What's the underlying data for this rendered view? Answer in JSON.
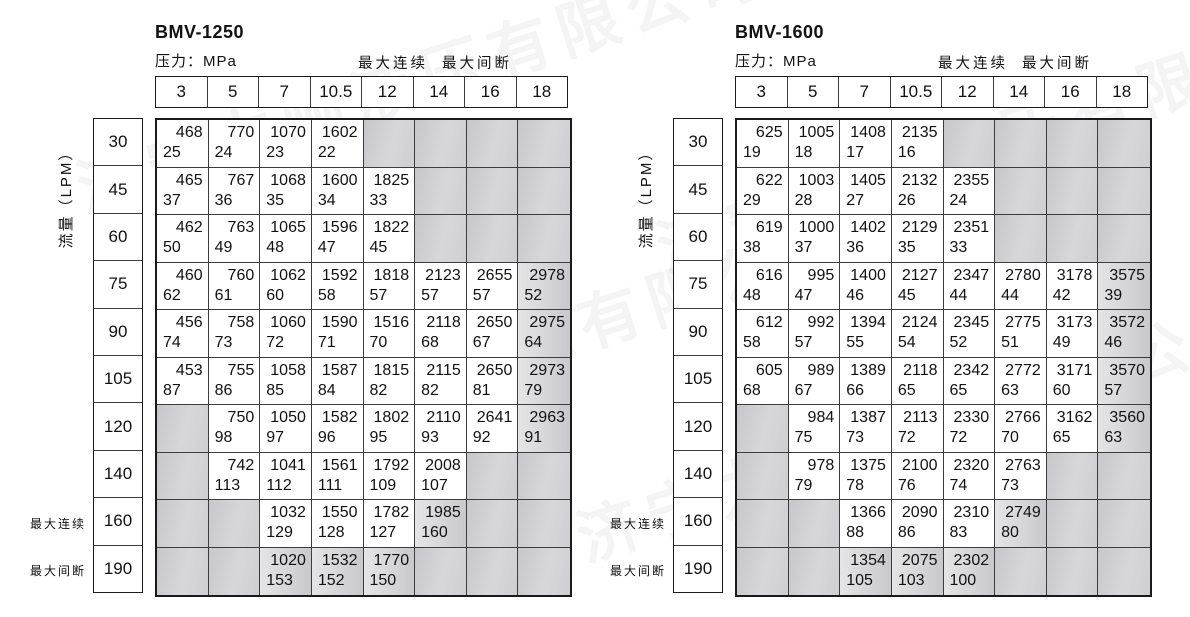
{
  "watermark_text": "济宁力顿液压有限公司",
  "colors": {
    "grid_outer_border": "#1a1a1a",
    "grid_inner_line": "#3c3c3c",
    "empty_cell_gray": "#cdcdd0",
    "shaded_value_cell_gray": "#d6d6d8",
    "text": "#111111"
  },
  "tables": [
    {
      "title": "BMV-1250",
      "pressure_unit_label": "压力：MPa",
      "max_continuous_label": "最大连续",
      "max_intermittent_label": "最大间断",
      "flow_axis_label": "流量（LPM）",
      "pressures": [
        "3",
        "5",
        "7",
        "10.5",
        "12",
        "14",
        "16",
        "18"
      ],
      "rows": [
        {
          "flow": "30",
          "cells": [
            [
              "468",
              "25"
            ],
            [
              "770",
              "24"
            ],
            [
              "1070",
              "23"
            ],
            [
              "1602",
              "22"
            ],
            null,
            null,
            null,
            null
          ]
        },
        {
          "flow": "45",
          "cells": [
            [
              "465",
              "37"
            ],
            [
              "767",
              "36"
            ],
            [
              "1068",
              "35"
            ],
            [
              "1600",
              "34"
            ],
            [
              "1825",
              "33"
            ],
            null,
            null,
            null
          ]
        },
        {
          "flow": "60",
          "cells": [
            [
              "462",
              "50"
            ],
            [
              "763",
              "49"
            ],
            [
              "1065",
              "48"
            ],
            [
              "1596",
              "47"
            ],
            [
              "1822",
              "45"
            ],
            null,
            null,
            null
          ]
        },
        {
          "flow": "75",
          "cells": [
            [
              "460",
              "62"
            ],
            [
              "760",
              "61"
            ],
            [
              "1062",
              "60"
            ],
            [
              "1592",
              "58"
            ],
            [
              "1818",
              "57"
            ],
            [
              "2123",
              "57"
            ],
            [
              "2655",
              "57"
            ],
            [
              "2978",
              "52",
              "g"
            ]
          ]
        },
        {
          "flow": "90",
          "cells": [
            [
              "456",
              "74"
            ],
            [
              "758",
              "73"
            ],
            [
              "1060",
              "72"
            ],
            [
              "1590",
              "71"
            ],
            [
              "1516",
              "70"
            ],
            [
              "2118",
              "68"
            ],
            [
              "2650",
              "67"
            ],
            [
              "2975",
              "64",
              "g"
            ]
          ]
        },
        {
          "flow": "105",
          "cells": [
            [
              "453",
              "87"
            ],
            [
              "755",
              "86"
            ],
            [
              "1058",
              "85"
            ],
            [
              "1587",
              "84"
            ],
            [
              "1815",
              "82"
            ],
            [
              "2115",
              "82"
            ],
            [
              "2650",
              "81"
            ],
            [
              "2973",
              "79",
              "g"
            ]
          ]
        },
        {
          "flow": "120",
          "cells": [
            null,
            [
              "750",
              "98"
            ],
            [
              "1050",
              "97"
            ],
            [
              "1582",
              "96"
            ],
            [
              "1802",
              "95"
            ],
            [
              "2110",
              "93"
            ],
            [
              "2641",
              "92"
            ],
            [
              "2963",
              "91",
              "g"
            ]
          ]
        },
        {
          "flow": "140",
          "cells": [
            null,
            [
              "742",
              "113"
            ],
            [
              "1041",
              "112"
            ],
            [
              "1561",
              "111"
            ],
            [
              "1792",
              "109"
            ],
            [
              "2008",
              "107"
            ],
            null,
            null
          ]
        },
        {
          "flow": "160",
          "cells": [
            null,
            null,
            [
              "1032",
              "129"
            ],
            [
              "1550",
              "128"
            ],
            [
              "1782",
              "127"
            ],
            [
              "1985",
              "160",
              "g"
            ],
            null,
            null
          ]
        },
        {
          "flow": "190",
          "cells": [
            null,
            null,
            [
              "1020",
              "153",
              "g"
            ],
            [
              "1532",
              "152",
              "g"
            ],
            [
              "1770",
              "150",
              "g"
            ],
            null,
            null,
            null
          ]
        }
      ]
    },
    {
      "title": "BMV-1600",
      "pressure_unit_label": "压力：MPa",
      "max_continuous_label": "最大连续",
      "max_intermittent_label": "最大间断",
      "flow_axis_label": "流量（LPM）",
      "pressures": [
        "3",
        "5",
        "7",
        "10.5",
        "12",
        "14",
        "16",
        "18"
      ],
      "rows": [
        {
          "flow": "30",
          "cells": [
            [
              "625",
              "19"
            ],
            [
              "1005",
              "18"
            ],
            [
              "1408",
              "17"
            ],
            [
              "2135",
              "16"
            ],
            null,
            null,
            null,
            null
          ]
        },
        {
          "flow": "45",
          "cells": [
            [
              "622",
              "29"
            ],
            [
              "1003",
              "28"
            ],
            [
              "1405",
              "27"
            ],
            [
              "2132",
              "26"
            ],
            [
              "2355",
              "24"
            ],
            null,
            null,
            null
          ]
        },
        {
          "flow": "60",
          "cells": [
            [
              "619",
              "38"
            ],
            [
              "1000",
              "37"
            ],
            [
              "1402",
              "36"
            ],
            [
              "2129",
              "35"
            ],
            [
              "2351",
              "33"
            ],
            null,
            null,
            null
          ]
        },
        {
          "flow": "75",
          "cells": [
            [
              "616",
              "48"
            ],
            [
              "995",
              "47"
            ],
            [
              "1400",
              "46"
            ],
            [
              "2127",
              "45"
            ],
            [
              "2347",
              "44"
            ],
            [
              "2780",
              "44"
            ],
            [
              "3178",
              "42"
            ],
            [
              "3575",
              "39",
              "g"
            ]
          ]
        },
        {
          "flow": "90",
          "cells": [
            [
              "612",
              "58"
            ],
            [
              "992",
              "57"
            ],
            [
              "1394",
              "55"
            ],
            [
              "2124",
              "54"
            ],
            [
              "2345",
              "52"
            ],
            [
              "2775",
              "51"
            ],
            [
              "3173",
              "49"
            ],
            [
              "3572",
              "46",
              "g"
            ]
          ]
        },
        {
          "flow": "105",
          "cells": [
            [
              "605",
              "68"
            ],
            [
              "989",
              "67"
            ],
            [
              "1389",
              "66"
            ],
            [
              "2118",
              "65"
            ],
            [
              "2342",
              "65"
            ],
            [
              "2772",
              "63"
            ],
            [
              "3171",
              "60"
            ],
            [
              "3570",
              "57",
              "g"
            ]
          ]
        },
        {
          "flow": "120",
          "cells": [
            null,
            [
              "984",
              "75"
            ],
            [
              "1387",
              "73"
            ],
            [
              "2113",
              "72"
            ],
            [
              "2330",
              "72"
            ],
            [
              "2766",
              "70"
            ],
            [
              "3162",
              "65"
            ],
            [
              "3560",
              "63",
              "g"
            ]
          ]
        },
        {
          "flow": "140",
          "cells": [
            null,
            [
              "978",
              "79"
            ],
            [
              "1375",
              "78"
            ],
            [
              "2100",
              "76"
            ],
            [
              "2320",
              "74"
            ],
            [
              "2763",
              "73"
            ],
            null,
            null
          ]
        },
        {
          "flow": "160",
          "cells": [
            null,
            null,
            [
              "1366",
              "88"
            ],
            [
              "2090",
              "86"
            ],
            [
              "2310",
              "83"
            ],
            [
              "2749",
              "80",
              "g"
            ],
            null,
            null
          ]
        },
        {
          "flow": "190",
          "cells": [
            null,
            null,
            [
              "1354",
              "105",
              "g"
            ],
            [
              "2075",
              "103",
              "g"
            ],
            [
              "2302",
              "100",
              "g"
            ],
            null,
            null,
            null
          ]
        }
      ]
    }
  ]
}
